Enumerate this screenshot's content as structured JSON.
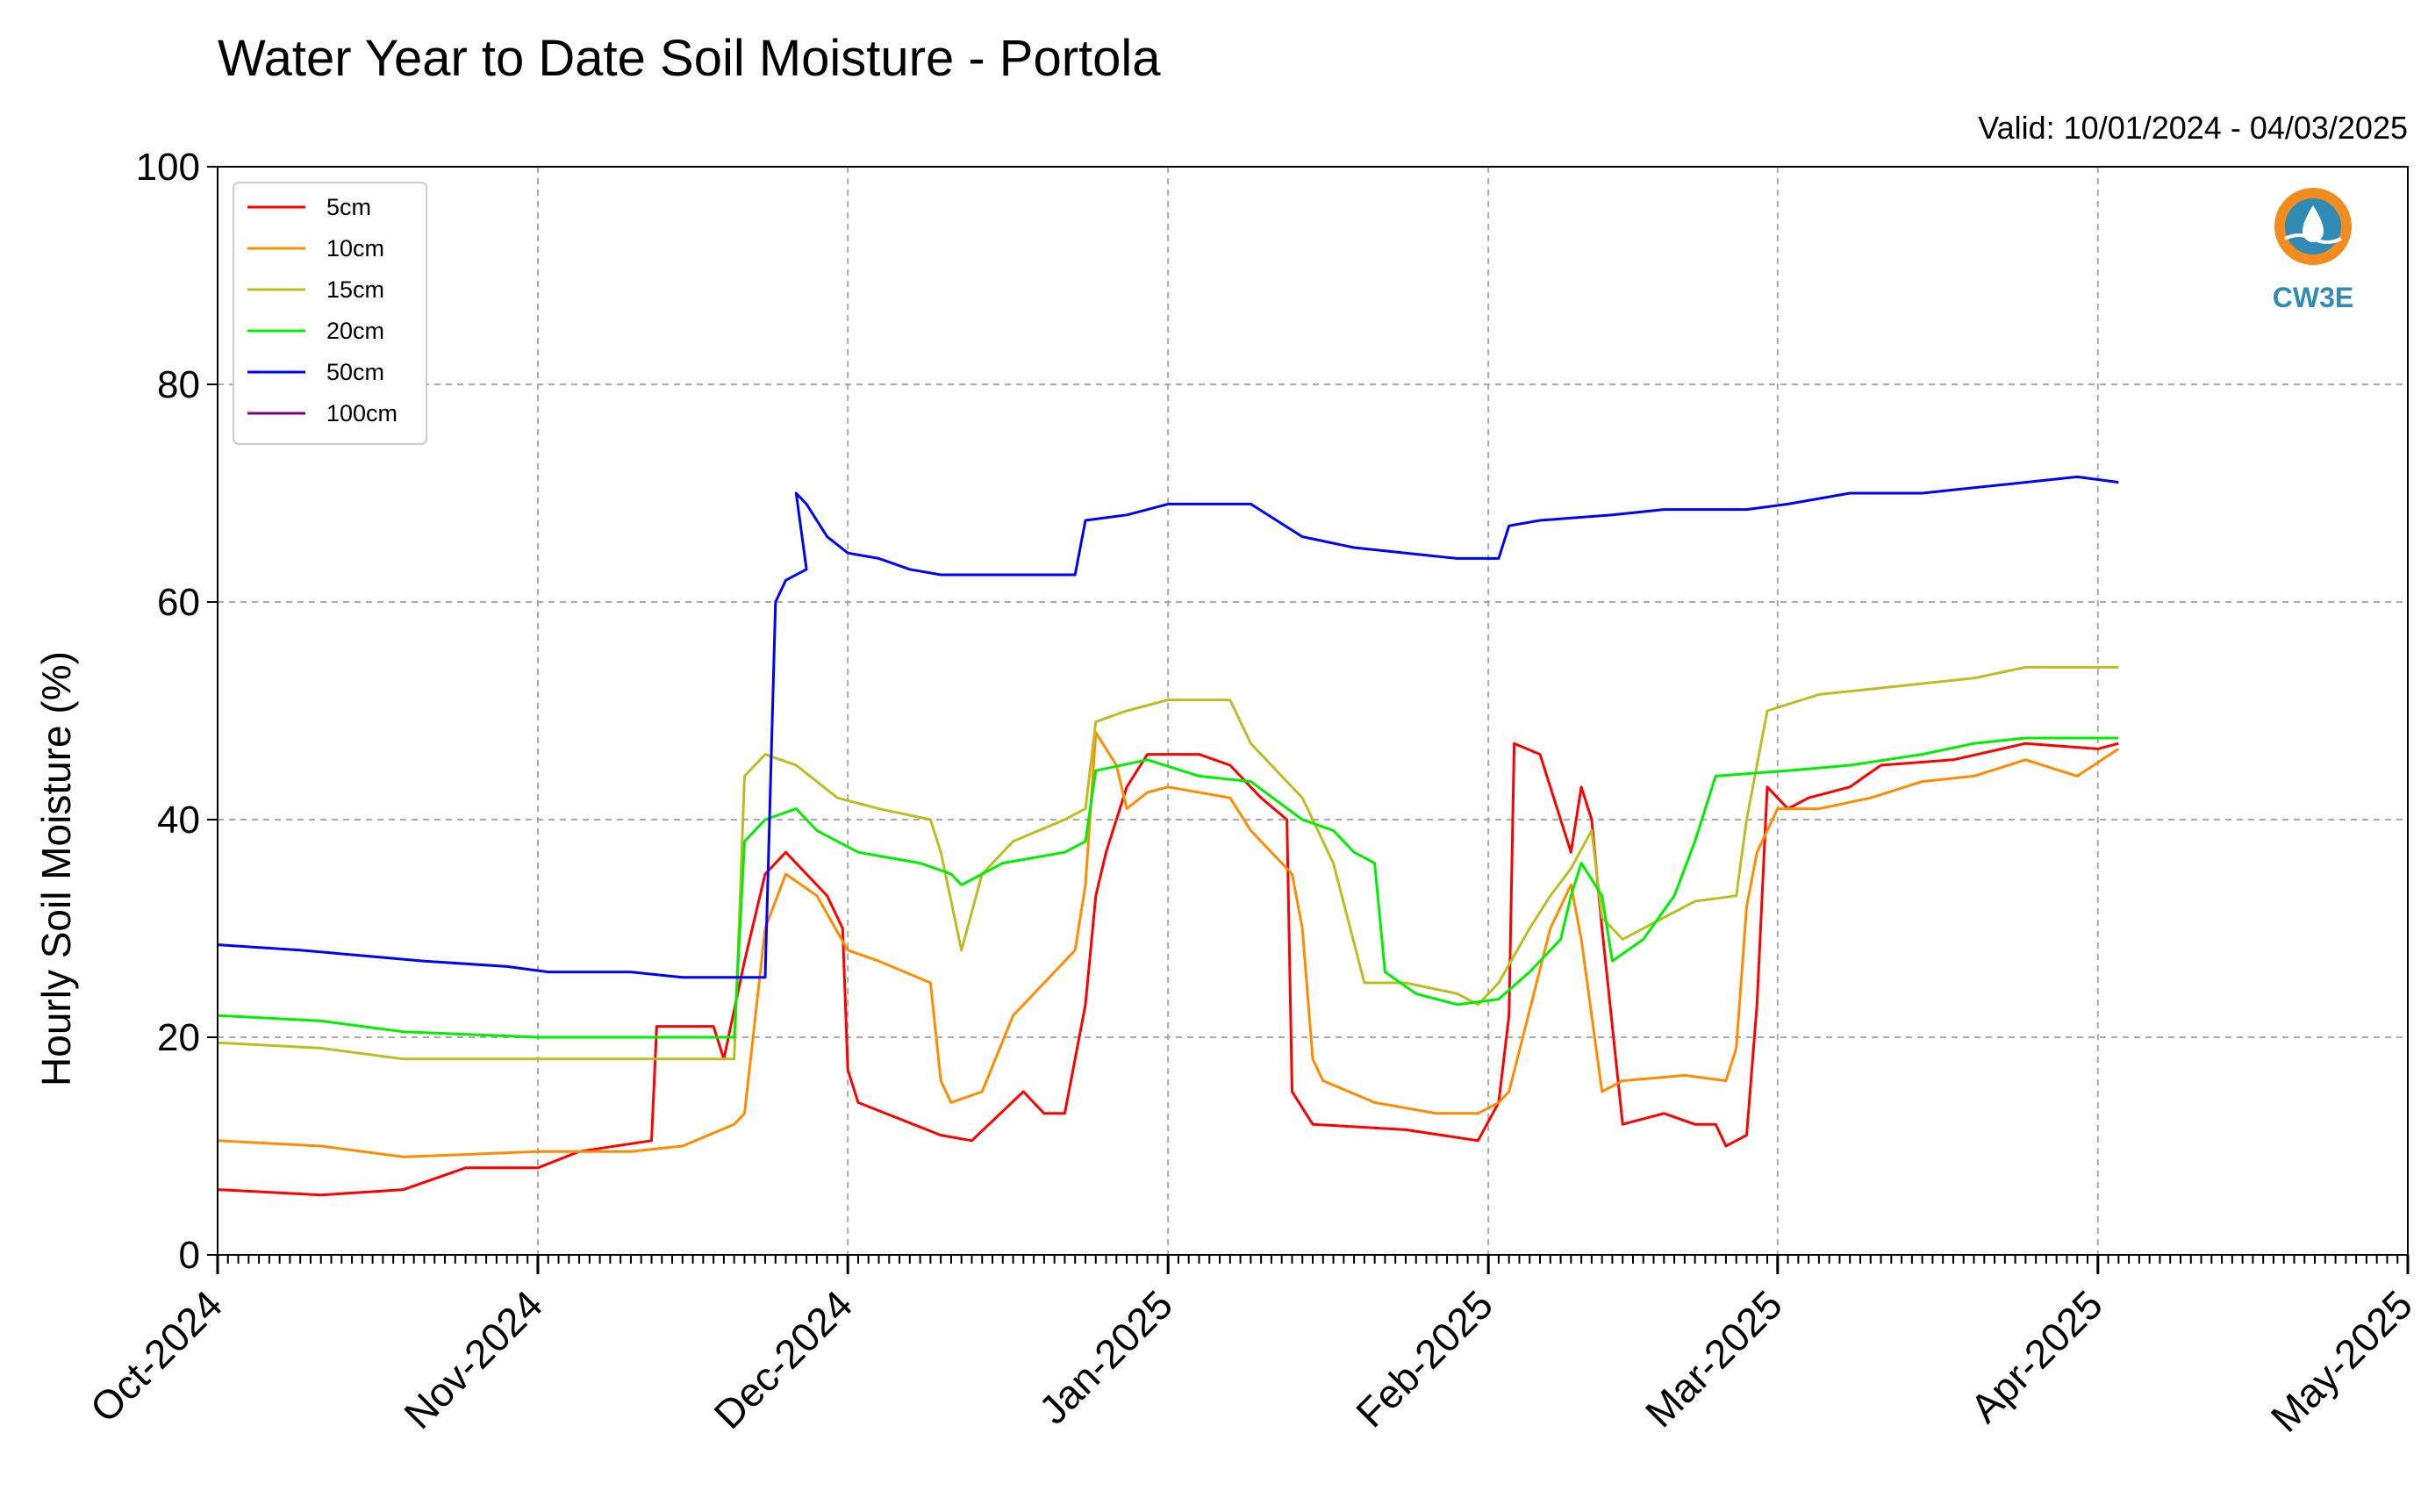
{
  "chart_data": {
    "type": "line",
    "title": "Water Year to Date Soil Moisture - Portola",
    "subtitle": "Valid: 10/01/2024 - 04/03/2025",
    "ylabel": "Hourly Soil Moisture (%)",
    "xlabel": "",
    "ylim": [
      0,
      100
    ],
    "yticks": [
      "0",
      "20",
      "40",
      "60",
      "80",
      "100"
    ],
    "xlim_days": [
      0,
      212
    ],
    "xticks": [
      {
        "label": "Oct-2024",
        "day": 0
      },
      {
        "label": "Nov-2024",
        "day": 31
      },
      {
        "label": "Dec-2024",
        "day": 61
      },
      {
        "label": "Jan-2025",
        "day": 92
      },
      {
        "label": "Feb-2025",
        "day": 123
      },
      {
        "label": "Mar-2025",
        "day": 151
      },
      {
        "label": "Apr-2025",
        "day": 182
      },
      {
        "label": "May-2025",
        "day": 212
      }
    ],
    "grid": true,
    "legend_position": "top-left",
    "series": [
      {
        "name": "5cm",
        "color": "#ff0000",
        "points": [
          [
            0,
            6
          ],
          [
            10,
            5.5
          ],
          [
            18,
            6
          ],
          [
            24,
            8
          ],
          [
            31,
            8
          ],
          [
            35,
            9.5
          ],
          [
            42,
            10.5
          ],
          [
            42.5,
            21
          ],
          [
            48,
            21
          ],
          [
            49,
            18
          ],
          [
            51,
            27
          ],
          [
            53,
            35
          ],
          [
            55,
            37
          ],
          [
            59,
            33
          ],
          [
            60.5,
            30
          ],
          [
            61,
            17
          ],
          [
            62,
            14
          ],
          [
            70,
            11
          ],
          [
            73,
            10.5
          ],
          [
            78,
            15
          ],
          [
            80,
            13
          ],
          [
            82,
            13
          ],
          [
            84,
            23
          ],
          [
            85,
            33
          ],
          [
            86,
            37
          ],
          [
            88,
            43
          ],
          [
            90,
            46
          ],
          [
            95,
            46
          ],
          [
            98,
            45
          ],
          [
            101,
            42
          ],
          [
            103.5,
            40
          ],
          [
            104,
            15
          ],
          [
            106,
            12
          ],
          [
            115,
            11.5
          ],
          [
            122,
            10.5
          ],
          [
            124,
            14
          ],
          [
            125,
            22
          ],
          [
            125.5,
            47
          ],
          [
            128,
            46
          ],
          [
            131,
            37
          ],
          [
            132,
            43
          ],
          [
            133,
            40
          ],
          [
            134,
            30
          ],
          [
            136,
            12
          ],
          [
            140,
            13
          ],
          [
            143,
            12
          ],
          [
            145,
            12
          ],
          [
            146,
            10
          ],
          [
            148,
            11
          ],
          [
            149,
            23
          ],
          [
            150,
            43
          ],
          [
            152,
            41
          ],
          [
            154,
            42
          ],
          [
            158,
            43
          ],
          [
            161,
            45
          ],
          [
            168,
            45.5
          ],
          [
            175,
            47
          ],
          [
            182,
            46.5
          ],
          [
            184,
            47
          ]
        ]
      },
      {
        "name": "10cm",
        "color": "#ff8c00",
        "points": [
          [
            0,
            10.5
          ],
          [
            10,
            10
          ],
          [
            18,
            9
          ],
          [
            31,
            9.5
          ],
          [
            40,
            9.5
          ],
          [
            45,
            10
          ],
          [
            50,
            12
          ],
          [
            51,
            13
          ],
          [
            53,
            30
          ],
          [
            55,
            35
          ],
          [
            58,
            33
          ],
          [
            61,
            28
          ],
          [
            64,
            27
          ],
          [
            69,
            25
          ],
          [
            70,
            16
          ],
          [
            71,
            14
          ],
          [
            74,
            15
          ],
          [
            77,
            22
          ],
          [
            81,
            26
          ],
          [
            83,
            28
          ],
          [
            84,
            34
          ],
          [
            85,
            48
          ],
          [
            87,
            45
          ],
          [
            88,
            41
          ],
          [
            90,
            42.5
          ],
          [
            92,
            43
          ],
          [
            98,
            42
          ],
          [
            100,
            39
          ],
          [
            104,
            35
          ],
          [
            105,
            30
          ],
          [
            106,
            18
          ],
          [
            107,
            16
          ],
          [
            112,
            14
          ],
          [
            118,
            13
          ],
          [
            122,
            13
          ],
          [
            124,
            14
          ],
          [
            125,
            15
          ],
          [
            129,
            30
          ],
          [
            131,
            34
          ],
          [
            132,
            29
          ],
          [
            134,
            15
          ],
          [
            136,
            16
          ],
          [
            142,
            16.5
          ],
          [
            146,
            16
          ],
          [
            147,
            19
          ],
          [
            148,
            32
          ],
          [
            149,
            37
          ],
          [
            151,
            41
          ],
          [
            155,
            41
          ],
          [
            160,
            42
          ],
          [
            165,
            43.5
          ],
          [
            170,
            44
          ],
          [
            175,
            45.5
          ],
          [
            180,
            44
          ],
          [
            184,
            46.5
          ]
        ]
      },
      {
        "name": "15cm",
        "color": "#bcbd22",
        "points": [
          [
            0,
            19.5
          ],
          [
            10,
            19
          ],
          [
            18,
            18
          ],
          [
            31,
            18
          ],
          [
            45,
            18
          ],
          [
            50,
            18
          ],
          [
            51,
            44
          ],
          [
            53,
            46
          ],
          [
            56,
            45
          ],
          [
            60,
            42
          ],
          [
            64,
            41
          ],
          [
            69,
            40
          ],
          [
            70,
            37
          ],
          [
            72,
            28
          ],
          [
            74,
            35
          ],
          [
            77,
            38
          ],
          [
            82,
            40
          ],
          [
            84,
            41
          ],
          [
            85,
            49
          ],
          [
            88,
            50
          ],
          [
            92,
            51
          ],
          [
            98,
            51
          ],
          [
            100,
            47
          ],
          [
            105,
            42
          ],
          [
            106,
            40
          ],
          [
            108,
            36
          ],
          [
            111,
            25
          ],
          [
            115,
            25
          ],
          [
            120,
            24
          ],
          [
            122,
            23
          ],
          [
            124,
            25
          ],
          [
            127,
            30
          ],
          [
            129,
            33
          ],
          [
            131,
            35.5
          ],
          [
            133,
            39
          ],
          [
            134,
            31
          ],
          [
            136,
            29
          ],
          [
            140,
            31
          ],
          [
            143,
            32.5
          ],
          [
            147,
            33
          ],
          [
            148,
            40
          ],
          [
            150,
            50
          ],
          [
            155,
            51.5
          ],
          [
            160,
            52
          ],
          [
            165,
            52.5
          ],
          [
            170,
            53
          ],
          [
            175,
            54
          ],
          [
            180,
            54
          ],
          [
            184,
            54
          ]
        ]
      },
      {
        "name": "20cm",
        "color": "#00ee00",
        "points": [
          [
            0,
            22
          ],
          [
            10,
            21.5
          ],
          [
            18,
            20.5
          ],
          [
            31,
            20
          ],
          [
            45,
            20
          ],
          [
            50,
            20
          ],
          [
            51,
            38
          ],
          [
            53,
            40
          ],
          [
            56,
            41
          ],
          [
            58,
            39
          ],
          [
            62,
            37
          ],
          [
            68,
            36
          ],
          [
            71,
            35
          ],
          [
            72,
            34
          ],
          [
            76,
            36
          ],
          [
            82,
            37
          ],
          [
            84,
            38
          ],
          [
            85,
            44.5
          ],
          [
            90,
            45.5
          ],
          [
            95,
            44
          ],
          [
            100,
            43.5
          ],
          [
            105,
            40
          ],
          [
            108,
            39
          ],
          [
            110,
            37
          ],
          [
            112,
            36
          ],
          [
            113,
            26
          ],
          [
            116,
            24
          ],
          [
            120,
            23
          ],
          [
            124,
            23.5
          ],
          [
            127,
            26
          ],
          [
            130,
            29
          ],
          [
            131,
            33
          ],
          [
            132,
            36
          ],
          [
            134,
            33
          ],
          [
            135,
            27
          ],
          [
            138,
            29
          ],
          [
            141,
            33
          ],
          [
            143,
            38
          ],
          [
            145,
            44
          ],
          [
            152,
            44.5
          ],
          [
            158,
            45
          ],
          [
            165,
            46
          ],
          [
            170,
            47
          ],
          [
            175,
            47.5
          ],
          [
            184,
            47.5
          ]
        ]
      },
      {
        "name": "50cm",
        "color": "#0000ff",
        "points": [
          [
            0,
            28.5
          ],
          [
            8,
            28
          ],
          [
            14,
            27.5
          ],
          [
            20,
            27
          ],
          [
            28,
            26.5
          ],
          [
            32,
            26
          ],
          [
            40,
            26
          ],
          [
            45,
            25.5
          ],
          [
            50,
            25.5
          ],
          [
            53,
            25.5
          ],
          [
            54,
            60
          ],
          [
            55,
            62
          ],
          [
            57,
            63
          ],
          [
            56,
            70
          ],
          [
            57,
            69
          ],
          [
            59,
            66
          ],
          [
            61,
            64.5
          ],
          [
            64,
            64
          ],
          [
            67,
            63
          ],
          [
            70,
            62.5
          ],
          [
            74,
            62.5
          ],
          [
            80,
            62.5
          ],
          [
            83,
            62.5
          ],
          [
            84,
            67.5
          ],
          [
            88,
            68
          ],
          [
            92,
            69
          ],
          [
            100,
            69
          ],
          [
            105,
            66
          ],
          [
            110,
            65
          ],
          [
            115,
            64.5
          ],
          [
            120,
            64
          ],
          [
            124,
            64
          ],
          [
            125,
            67
          ],
          [
            128,
            67.5
          ],
          [
            135,
            68
          ],
          [
            140,
            68.5
          ],
          [
            148,
            68.5
          ],
          [
            152,
            69
          ],
          [
            158,
            70
          ],
          [
            165,
            70
          ],
          [
            170,
            70.5
          ],
          [
            175,
            71
          ],
          [
            180,
            71.5
          ],
          [
            184,
            71
          ]
        ]
      },
      {
        "name": "100cm",
        "color": "#800080",
        "points": []
      }
    ]
  },
  "logo": {
    "text": "CW3E",
    "color": "#2f8bb3",
    "accent": "#f28c20"
  }
}
